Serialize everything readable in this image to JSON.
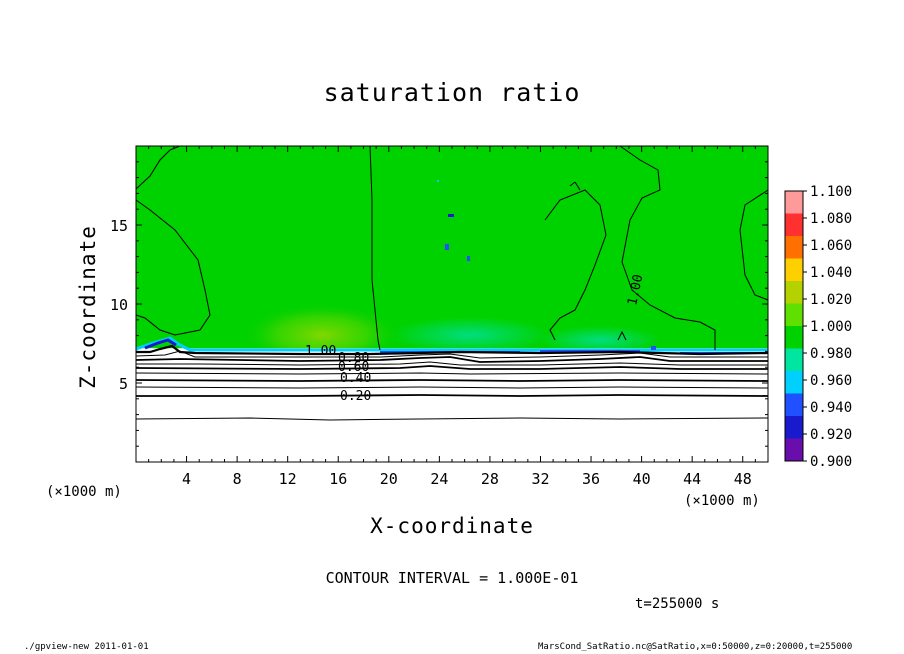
{
  "chart_data": {
    "type": "heatmap",
    "title": "saturation ratio",
    "xlabel": "X-coordinate",
    "ylabel": "Z-coordinate",
    "x_unit": "(×1000 m)",
    "xlim": [
      0,
      50
    ],
    "ylim": [
      0,
      20
    ],
    "x_ticks": [
      4,
      8,
      12,
      16,
      20,
      24,
      28,
      32,
      36,
      40,
      44,
      48
    ],
    "y_ticks": [
      5,
      10,
      15
    ],
    "colorbar": {
      "levels": [
        0.9,
        0.92,
        0.94,
        0.96,
        0.98,
        1.0,
        1.02,
        1.04,
        1.06,
        1.08,
        1.1
      ],
      "labels": [
        "0.900",
        "0.920",
        "0.940",
        "0.960",
        "0.980",
        "1.000",
        "1.020",
        "1.040",
        "1.060",
        "1.080",
        "1.100"
      ],
      "colors": [
        "#6a0dad",
        "#1a1acd",
        "#2050ff",
        "#00d0ff",
        "#00e6a0",
        "#00d200",
        "#60e000",
        "#b4d200",
        "#ffd000",
        "#ff7000",
        "#ff3030",
        "#ff9a9a"
      ]
    },
    "contour_labels": [
      "1.00",
      "0.80",
      "0.60",
      "0.40",
      "0.20",
      "1.00"
    ],
    "contour_interval": "CONTOUR INTERVAL = 1.000E-01",
    "time": "t=255000 s",
    "field": {
      "saturated_layer_base_z": 7.2,
      "background_value": 1.0,
      "below_base_ratio": "decreases from 1.0 near z≈7 to 0 near z≈3"
    }
  },
  "footer": {
    "left": "./gpview-new  2011-01-01",
    "right": "MarsCond_SatRatio.nc@SatRatio,x=0:50000,z=0:20000,t=255000"
  }
}
